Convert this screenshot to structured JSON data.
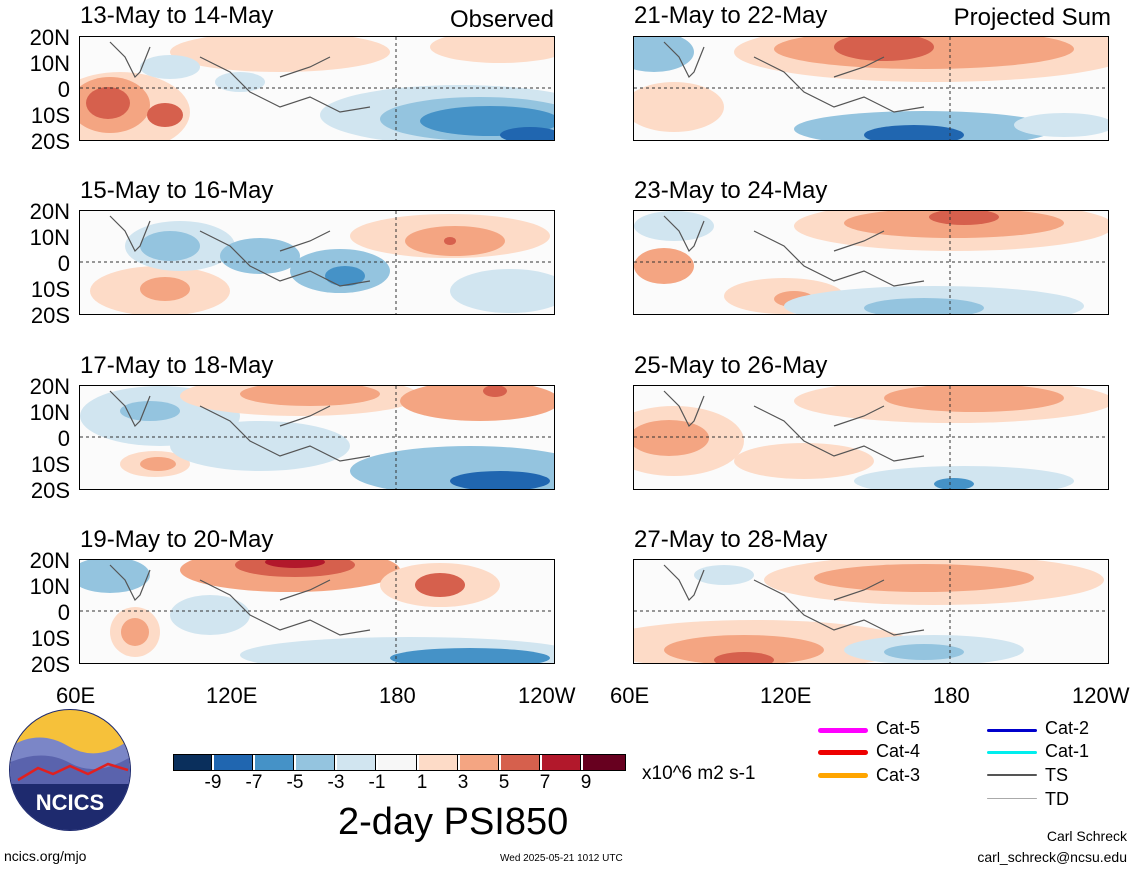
{
  "panels": [
    {
      "title": "13-May to 14-May",
      "tag": "Observed"
    },
    {
      "title": "15-May to 16-May",
      "tag": ""
    },
    {
      "title": "17-May to 18-May",
      "tag": ""
    },
    {
      "title": "19-May to 20-May",
      "tag": ""
    },
    {
      "title": "21-May to 22-May",
      "tag": "Projected Sum"
    },
    {
      "title": "23-May to 24-May",
      "tag": ""
    },
    {
      "title": "25-May to 26-May",
      "tag": ""
    },
    {
      "title": "27-May to 28-May",
      "tag": ""
    }
  ],
  "lat_labels": [
    "20N",
    "10N",
    "0",
    "10S",
    "20S"
  ],
  "lon_labels": [
    "60E",
    "120E",
    "180",
    "120W"
  ],
  "colorbar": {
    "colors": [
      "#0a2f5c",
      "#2066b0",
      "#4592c7",
      "#94c4df",
      "#d1e5f0",
      "#f7f7f7",
      "#fddbc7",
      "#f4a582",
      "#d6604d",
      "#b2182b",
      "#67001f"
    ],
    "ticks": [
      "-9",
      "-7",
      "-5",
      "-3",
      "-1",
      "1",
      "3",
      "5",
      "7",
      "9"
    ],
    "units": "x10^6 m2 s-1"
  },
  "title": "2-day PSI850",
  "legend": [
    {
      "label": "Cat-5",
      "color": "#ff00ff"
    },
    {
      "label": "Cat-4",
      "color": "#ee0000"
    },
    {
      "label": "Cat-3",
      "color": "#ffa500"
    },
    {
      "label": "Cat-2",
      "color": "#0000cc"
    },
    {
      "label": "Cat-1",
      "color": "#00eeee"
    },
    {
      "label": "TS",
      "color": "#555555"
    },
    {
      "label": "TD",
      "color": "#aaaaaa"
    }
  ],
  "logo_text": "NCICS",
  "footer": {
    "url": "ncics.org/mjo",
    "timestamp": "Wed 2025-05-21 1012 UTC",
    "author": "Carl Schreck",
    "email": "carl_schreck@ncsu.edu"
  }
}
